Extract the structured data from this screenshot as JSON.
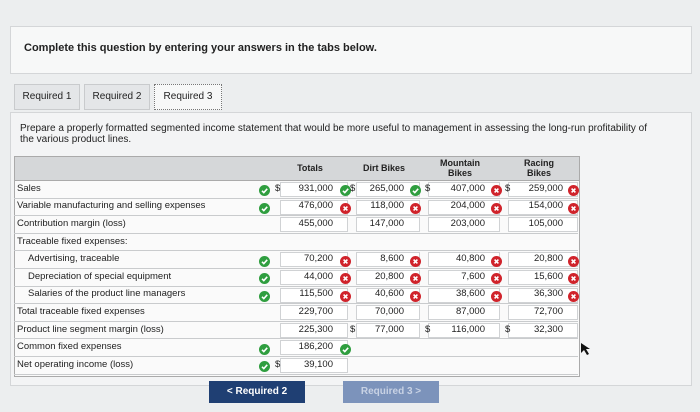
{
  "instruction": "Complete this question by entering your answers in the tabs below.",
  "tabs": [
    "Required 1",
    "Required 2",
    "Required 3"
  ],
  "prompt": "Prepare a properly formatted segmented income statement that would be more useful to management in assessing the long-run profitability of the various product lines.",
  "table": {
    "headers": [
      "Totals",
      "Dirt Bikes",
      "Mountain Bikes",
      "Racing Bikes"
    ],
    "rows": [
      {
        "label": "Sales",
        "cells": [
          {
            "sign": "$",
            "text": "931,000"
          },
          {
            "sign": "$",
            "text": "265,000"
          },
          {
            "sign": "$",
            "text": "407,000"
          },
          {
            "sign": "$",
            "text": "259,000"
          }
        ]
      },
      {
        "label": "Variable manufacturing and selling expenses",
        "cells": [
          "476,000",
          "118,000",
          "204,000",
          "154,000"
        ]
      },
      {
        "label": "Contribution margin (loss)",
        "cells": [
          "455,000",
          "147,000",
          "203,000",
          "105,000"
        ]
      },
      {
        "label": "Traceable fixed expenses:",
        "cells": []
      },
      {
        "label": "Advertising, traceable",
        "cells": [
          "70,200",
          "8,600",
          "40,800",
          "20,800"
        ]
      },
      {
        "label": "Depreciation of special equipment",
        "cells": [
          "44,000",
          "20,800",
          "7,600",
          "15,600"
        ]
      },
      {
        "label": "Salaries of the product line managers",
        "cells": [
          "115,500",
          "40,600",
          "38,600",
          "36,300"
        ]
      },
      {
        "label": "Total traceable fixed expenses",
        "cells": [
          "229,700",
          "70,000",
          "87,000",
          "72,700"
        ]
      },
      {
        "label": "Product line segment margin (loss)",
        "cells": [
          "225,300",
          {
            "sign": "$",
            "text": "77,000"
          },
          {
            "sign": "$",
            "text": "116,000"
          },
          {
            "sign": "$",
            "text": "32,300"
          }
        ]
      },
      {
        "label": "Common fixed expenses",
        "cells": [
          "186,200"
        ]
      },
      {
        "label": "Net operating income (loss)",
        "cells": [
          {
            "sign": "$",
            "text": "39,100"
          }
        ]
      }
    ]
  },
  "buttons": {
    "prev": "Required 2",
    "next": "Required 3"
  }
}
